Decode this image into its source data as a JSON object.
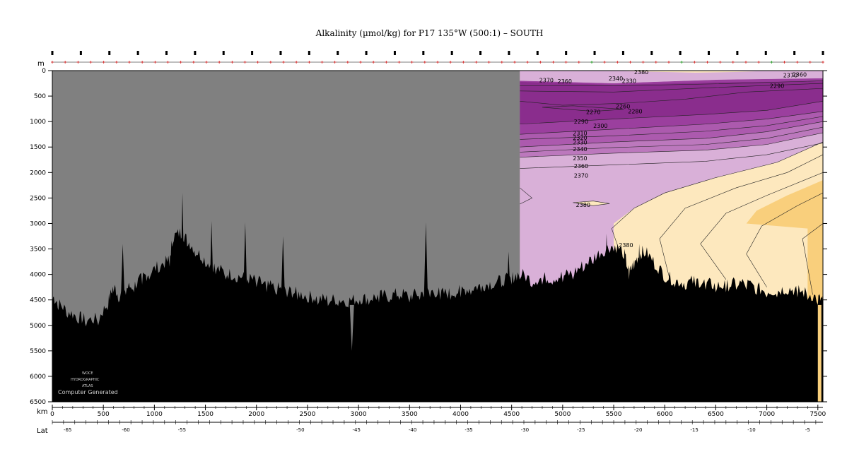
{
  "chart_data": {
    "type": "heatmap",
    "title": "Alkalinity (µmol/kg) for P17 135°W (500:1) – SOUTH",
    "x_axis": {
      "unit": "km",
      "ticks": [
        0,
        500,
        1000,
        1500,
        2000,
        2500,
        3000,
        3500,
        4000,
        4500,
        5000,
        5500,
        6000,
        6500,
        7000,
        7500
      ],
      "range": [
        0,
        7550
      ]
    },
    "y_axis": {
      "unit": "m",
      "ticks": [
        0,
        500,
        1000,
        1500,
        2000,
        2500,
        3000,
        3500,
        4000,
        4500,
        5000,
        5500,
        6000,
        6500
      ],
      "range": [
        0,
        6500
      ],
      "inverted": true
    },
    "lat_axis": {
      "label": "Lat",
      "ticks": [
        {
          "label": "-65",
          "km": 150
        },
        {
          "label": "-60",
          "km": 720
        },
        {
          "label": "-55",
          "km": 1270
        },
        {
          "label": "-50",
          "km": 2430
        },
        {
          "label": "-45",
          "km": 2980
        },
        {
          "label": "-40",
          "km": 3530
        },
        {
          "label": "-35",
          "km": 4080
        },
        {
          "label": "-30",
          "km": 4630
        },
        {
          "label": "-25",
          "km": 5180
        },
        {
          "label": "-20",
          "km": 5740
        },
        {
          "label": "-15",
          "km": 6290
        },
        {
          "label": "-10",
          "km": 6850
        },
        {
          "label": "-5",
          "km": 7400
        }
      ]
    },
    "no_data_region": {
      "km_range": [
        0,
        4580
      ],
      "color": "#808080"
    },
    "contour_levels": [
      2260,
      2270,
      2280,
      2290,
      2300,
      2310,
      2320,
      2330,
      2340,
      2350,
      2360,
      2370,
      2380
    ],
    "fill_colors": {
      "lt_2290": "#8a2d8d",
      "2290_2310": "#9b3f9e",
      "2310_2330": "#ac5aae",
      "2330_2350": "#bc78bd",
      "2350_2370": "#d9b0d8",
      "2370_2380": "#fde8be",
      "gt_2380": "#f9cf7c"
    },
    "contour_labels": [
      {
        "text": "2380",
        "km": 5700,
        "m": 30
      },
      {
        "text": "2370",
        "km": 7160,
        "m": 90
      },
      {
        "text": "2360",
        "km": 7250,
        "m": 75
      },
      {
        "text": "2370",
        "km": 4770,
        "m": 190
      },
      {
        "text": "2360",
        "km": 4950,
        "m": 210
      },
      {
        "text": "2340",
        "km": 5450,
        "m": 150
      },
      {
        "text": "2330",
        "km": 5580,
        "m": 200
      },
      {
        "text": "2290",
        "km": 7030,
        "m": 300
      },
      {
        "text": "2260",
        "km": 5520,
        "m": 700
      },
      {
        "text": "2270",
        "km": 5230,
        "m": 810
      },
      {
        "text": "2280",
        "km": 5640,
        "m": 800
      },
      {
        "text": "2290",
        "km": 5110,
        "m": 1000
      },
      {
        "text": "2300",
        "km": 5300,
        "m": 1080
      },
      {
        "text": "2310",
        "km": 5100,
        "m": 1230
      },
      {
        "text": "2320",
        "km": 5100,
        "m": 1320
      },
      {
        "text": "2330",
        "km": 5100,
        "m": 1410
      },
      {
        "text": "2340",
        "km": 5100,
        "m": 1540
      },
      {
        "text": "2350",
        "km": 5100,
        "m": 1720
      },
      {
        "text": "2360",
        "km": 5110,
        "m": 1870
      },
      {
        "text": "2370",
        "km": 5110,
        "m": 2060
      },
      {
        "text": "2380",
        "km": 5130,
        "m": 2630
      },
      {
        "text": "2380",
        "km": 5550,
        "m": 3420
      }
    ],
    "bathymetry": [
      [
        0,
        4550
      ],
      [
        60,
        4700
      ],
      [
        150,
        4850
      ],
      [
        250,
        4960
      ],
      [
        330,
        5020
      ],
      [
        450,
        5000
      ],
      [
        540,
        4700
      ],
      [
        600,
        4350
      ],
      [
        650,
        4550
      ],
      [
        720,
        4400
      ],
      [
        800,
        4350
      ],
      [
        880,
        4200
      ],
      [
        950,
        4100
      ],
      [
        1050,
        3950
      ],
      [
        1150,
        3850
      ],
      [
        1180,
        3400
      ],
      [
        1260,
        3300
      ],
      [
        1320,
        3450
      ],
      [
        1400,
        3650
      ],
      [
        1500,
        3850
      ],
      [
        1600,
        4000
      ],
      [
        1700,
        4100
      ],
      [
        1800,
        4150
      ],
      [
        1900,
        4200
      ],
      [
        2000,
        4250
      ],
      [
        2100,
        4350
      ],
      [
        2200,
        4400
      ],
      [
        2300,
        4450
      ],
      [
        2400,
        4500
      ],
      [
        2500,
        4550
      ],
      [
        2600,
        4600
      ],
      [
        2700,
        4620
      ],
      [
        2800,
        4620
      ],
      [
        2900,
        4650
      ],
      [
        3000,
        4600
      ],
      [
        3100,
        4600
      ],
      [
        3200,
        4550
      ],
      [
        3300,
        4550
      ],
      [
        3400,
        4500
      ],
      [
        3500,
        4550
      ],
      [
        3600,
        4500
      ],
      [
        3700,
        4450
      ],
      [
        3800,
        4500
      ],
      [
        3900,
        4500
      ],
      [
        4000,
        4450
      ],
      [
        4100,
        4400
      ],
      [
        4200,
        4350
      ],
      [
        4300,
        4300
      ],
      [
        4400,
        4250
      ],
      [
        4500,
        4200
      ],
      [
        4580,
        4100
      ],
      [
        4700,
        4250
      ],
      [
        4800,
        4200
      ],
      [
        4900,
        4200
      ],
      [
        5000,
        4150
      ],
      [
        5100,
        4100
      ],
      [
        5200,
        3950
      ],
      [
        5300,
        3800
      ],
      [
        5400,
        3650
      ],
      [
        5500,
        3550
      ],
      [
        5600,
        3700
      ],
      [
        5650,
        4100
      ],
      [
        5700,
        3900
      ],
      [
        5750,
        3750
      ],
      [
        5800,
        3650
      ],
      [
        5900,
        3900
      ],
      [
        6000,
        4150
      ],
      [
        6100,
        4250
      ],
      [
        6200,
        4300
      ],
      [
        6300,
        4250
      ],
      [
        6400,
        4300
      ],
      [
        6500,
        4350
      ],
      [
        6600,
        4350
      ],
      [
        6700,
        4300
      ],
      [
        6800,
        4300
      ],
      [
        6900,
        4400
      ],
      [
        7000,
        4450
      ],
      [
        7100,
        4450
      ],
      [
        7200,
        4400
      ],
      [
        7300,
        4450
      ],
      [
        7400,
        4500
      ],
      [
        7500,
        4600
      ],
      [
        7550,
        4620
      ]
    ],
    "bathymetry_spikes": [
      [
        690,
        3400
      ],
      [
        1275,
        2400
      ],
      [
        1560,
        2950
      ],
      [
        1890,
        2980
      ],
      [
        2260,
        3250
      ],
      [
        2935,
        5500
      ],
      [
        3660,
        2980
      ],
      [
        4470,
        3550
      ],
      [
        5430,
        3200
      ],
      [
        5750,
        3400
      ]
    ],
    "logo_text": {
      "line1": "WOCE",
      "line2": "HYDROGRAPHIC",
      "line3": "ATLAS",
      "line4": "Computer Generated"
    },
    "top_axis_label": "m",
    "bottom_axis_label": "km"
  }
}
